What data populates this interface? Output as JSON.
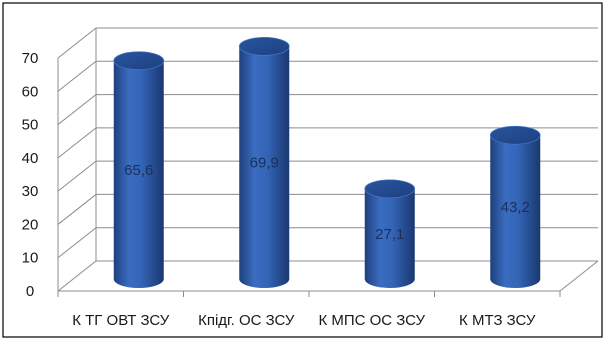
{
  "chart_data": {
    "type": "bar",
    "categories": [
      "К ТГ ОВТ ЗСУ",
      "Кпідг. ОС ЗСУ",
      "К МПС ОС ЗСУ",
      "К МТЗ ЗСУ"
    ],
    "values": [
      65.6,
      69.9,
      27.1,
      43.2
    ],
    "data_labels": [
      "65,6",
      "69,9",
      "27,1",
      "43,2"
    ],
    "y_ticks": [
      "0",
      "10",
      "20",
      "30",
      "40",
      "50",
      "60",
      "70"
    ],
    "ylim": [
      0,
      70
    ],
    "grid": true,
    "legend": "none",
    "bar_shape": "cylinder-3d",
    "bar_color": "#2f5aa6"
  }
}
